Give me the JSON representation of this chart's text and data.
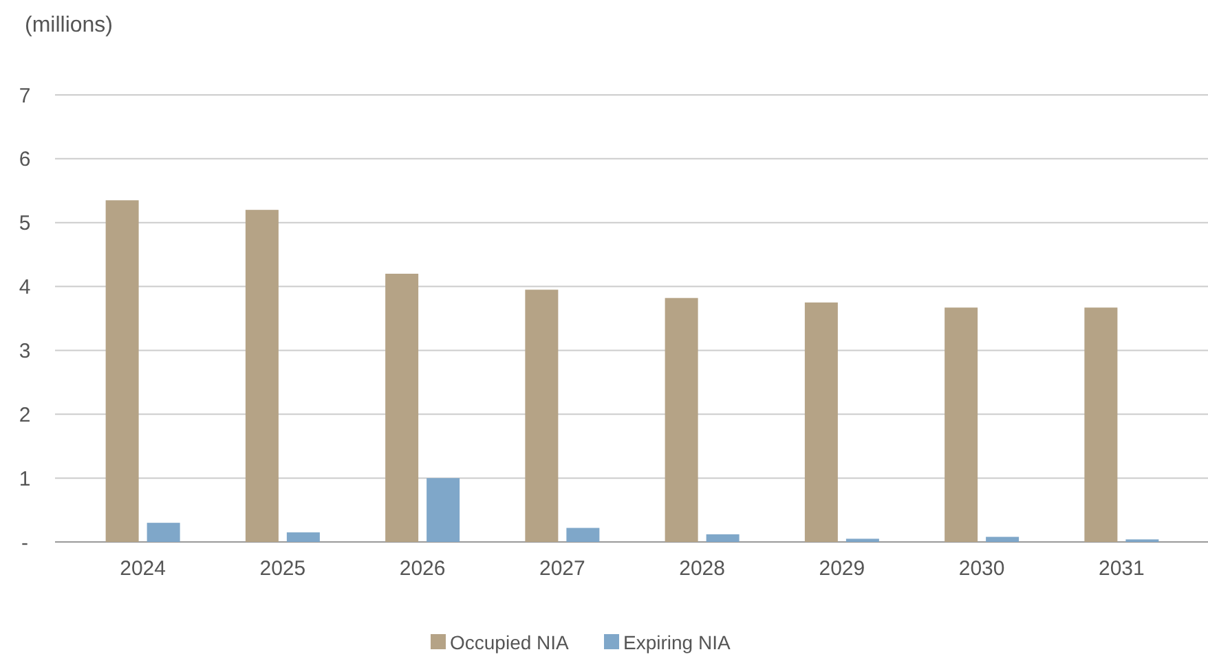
{
  "chart_data": {
    "type": "bar",
    "ylabel": "(millions)",
    "categories": [
      "2024",
      "2025",
      "2026",
      "2027",
      "2028",
      "2029",
      "2030",
      "2031"
    ],
    "series": [
      {
        "name": "Occupied NIA",
        "color": "#b5a386",
        "values": [
          5.35,
          5.2,
          4.2,
          3.95,
          3.82,
          3.75,
          3.67,
          3.67
        ]
      },
      {
        "name": "Expiring NIA",
        "color": "#7fa7c9",
        "values": [
          0.3,
          0.15,
          1.0,
          0.22,
          0.12,
          0.05,
          0.08,
          0.04
        ]
      }
    ],
    "ylim": [
      0,
      7
    ],
    "yticks": [
      {
        "value": 0,
        "label": "-"
      },
      1,
      2,
      3,
      4,
      5,
      6,
      7
    ],
    "grid": "y",
    "legend": "bottom"
  }
}
